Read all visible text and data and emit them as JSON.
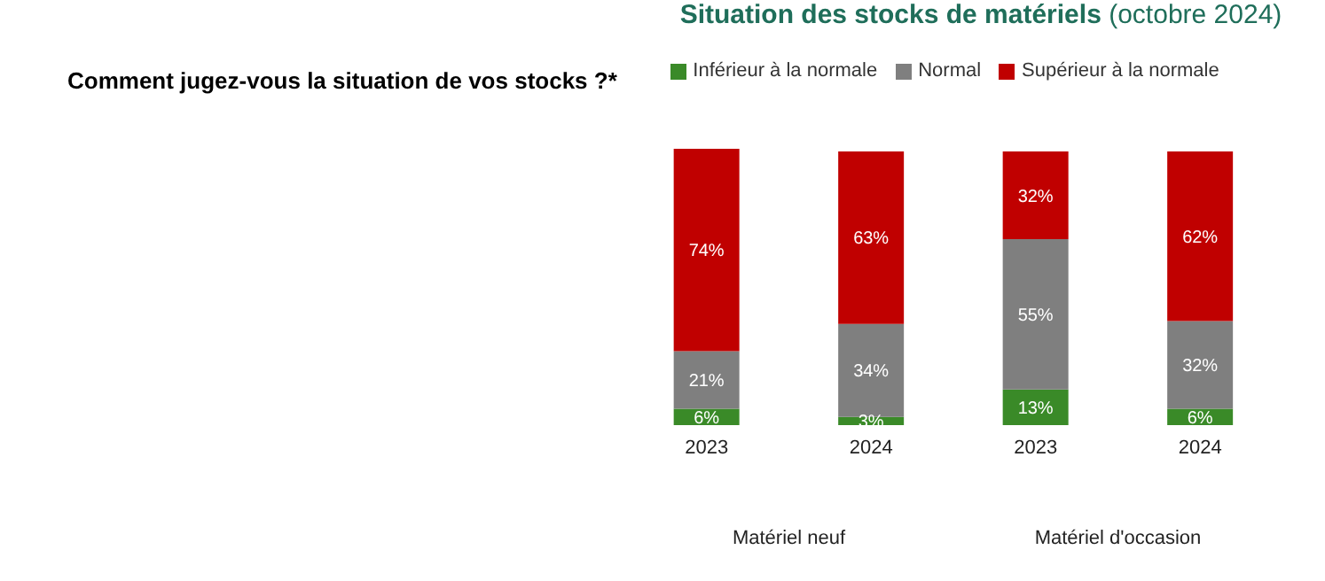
{
  "chart_data": {
    "type": "bar",
    "title": "Situation des stocks de matériels",
    "subtitle": "(octobre 2024)",
    "annotations": [
      "Comment jugez-vous la situation de vos stocks ?*",
      "Matériel neuf",
      "Matériel d'occasion"
    ],
    "categories": [
      "2023",
      "2024",
      "2023",
      "2024"
    ],
    "series": [
      {
        "name": "Inférieur à la normale",
        "color": "#3a8a28",
        "values": [
          6,
          3,
          13,
          6
        ],
        "value_labels": [
          "6%",
          "3%",
          "13%",
          "6%"
        ]
      },
      {
        "name": "Normal",
        "color": "#7f7f7f",
        "values": [
          21,
          34,
          55,
          32
        ],
        "value_labels": [
          "21%",
          "34%",
          "55%",
          "32%"
        ]
      },
      {
        "name": "Supérieur à la normale",
        "color": "#c00000",
        "values": [
          74,
          63,
          32,
          62
        ],
        "value_labels": [
          "74%",
          "63%",
          "32%",
          "62%"
        ]
      }
    ],
    "stacked": true,
    "tick_labels": "x",
    "legend": "top"
  }
}
